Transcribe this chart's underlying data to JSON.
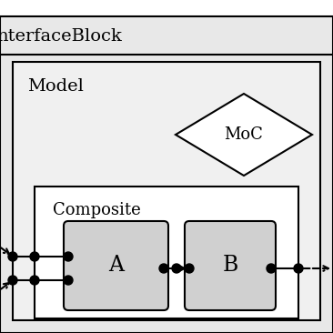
{
  "bg_white": "#ffffff",
  "bg_light_gray": "#e8e8e8",
  "bg_block": "#d0d0d0",
  "line_color": "#000000",
  "title_interfaceblock": "nterfaceBlock",
  "title_model": "Model",
  "title_composite": "Composite",
  "title_moc": "MoC",
  "label_a": "A",
  "label_b": "B",
  "figsize": [
    3.66,
    3.66
  ],
  "dpi": 100
}
